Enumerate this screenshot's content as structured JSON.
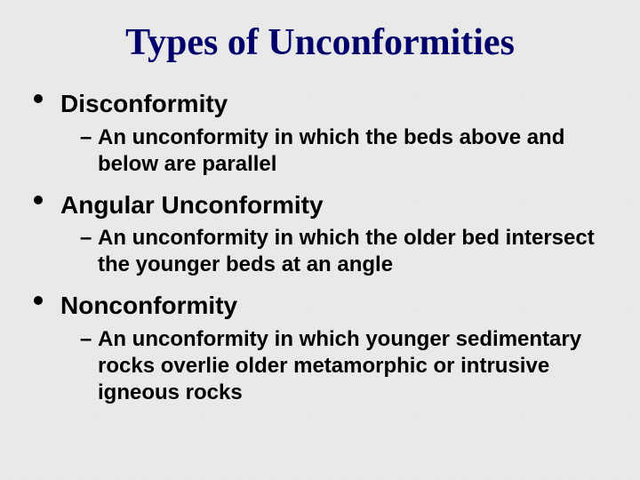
{
  "slide": {
    "title": "Types of Unconformities",
    "title_color": "#00006b",
    "title_fontsize": 42,
    "title_font": "Times New Roman",
    "background_color": "#f0f0f0",
    "body_font": "Arial",
    "body_color": "#000000",
    "items": [
      {
        "heading": "Disconformity",
        "heading_fontsize": 28,
        "sub": [
          "An unconformity in which the beds above and below are parallel"
        ],
        "sub_fontsize": 24
      },
      {
        "heading": "Angular Unconformity",
        "heading_fontsize": 28,
        "sub": [
          "An unconformity in which the older bed intersect the younger beds at an angle"
        ],
        "sub_fontsize": 24
      },
      {
        "heading": "Nonconformity",
        "heading_fontsize": 28,
        "sub": [
          "An unconformity in which younger sedimentary rocks overlie older metamorphic or intrusive igneous rocks"
        ],
        "sub_fontsize": 24
      }
    ]
  }
}
